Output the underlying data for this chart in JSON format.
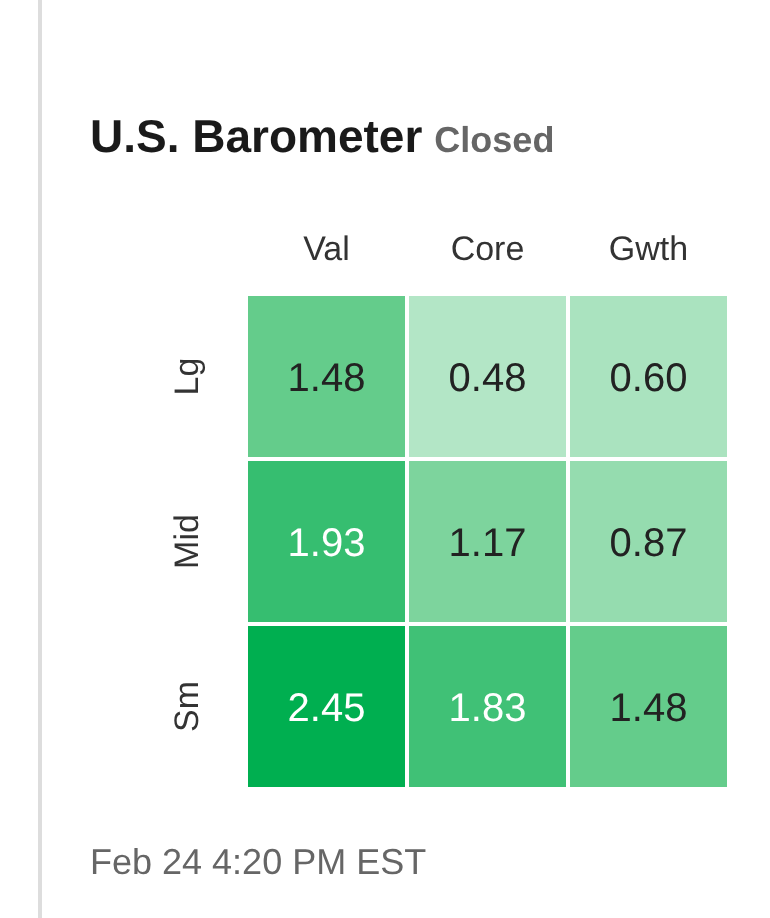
{
  "chart_data": {
    "type": "heatmap",
    "title": "U.S. Barometer",
    "subtitle": "Closed",
    "categories": [
      "Val",
      "Core",
      "Gwth"
    ],
    "y_categories": [
      "Lg",
      "Mid",
      "Sm"
    ],
    "cells": [
      [
        1.48,
        0.48,
        0.6
      ],
      [
        1.93,
        1.17,
        0.87
      ],
      [
        2.45,
        1.83,
        1.48
      ]
    ],
    "data_labels": true,
    "cell_labels": [
      [
        "1.48",
        "0.48",
        "0.60"
      ],
      [
        "1.93",
        "1.17",
        "0.87"
      ],
      [
        "2.45",
        "1.83",
        "1.48"
      ]
    ],
    "colors": [
      "#b3e6c6",
      "#66cc8c",
      "#00af50"
    ],
    "annotations": [
      "Feb 24 4:20 PM EST"
    ]
  }
}
